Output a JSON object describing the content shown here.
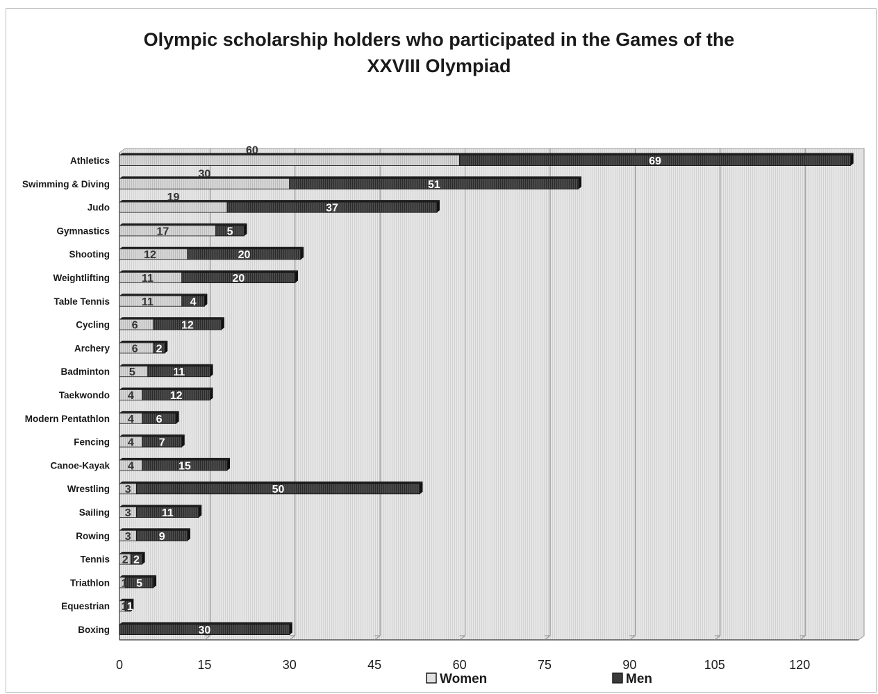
{
  "chart_data": {
    "type": "bar",
    "orientation": "horizontal",
    "stacked": true,
    "title": "Olympic scholarship holders who participated in the Games of the XXVIII Olympiad",
    "title_lines": [
      "Olympic scholarship holders who participated in the Games of the",
      "XXVIII Olympiad"
    ],
    "categories": [
      "Athletics",
      "Swimming & Diving",
      "Judo",
      "Gymnastics",
      "Shooting",
      "Weightlifting",
      "Table Tennis",
      "Cycling",
      "Archery",
      "Badminton",
      "Taekwondo",
      "Modern Pentathlon",
      "Fencing",
      "Canoe-Kayak",
      "Wrestling",
      "Sailing",
      "Rowing",
      "Tennis",
      "Triathlon",
      "Equestrian",
      "Boxing"
    ],
    "series": [
      {
        "name": "Women",
        "values": [
          60,
          30,
          19,
          17,
          12,
          11,
          11,
          6,
          6,
          5,
          4,
          4,
          4,
          4,
          3,
          3,
          3,
          2,
          1,
          1,
          0
        ],
        "color": "#d4d4d4"
      },
      {
        "name": "Men",
        "values": [
          69,
          51,
          37,
          5,
          20,
          20,
          4,
          12,
          2,
          11,
          12,
          6,
          7,
          15,
          50,
          11,
          9,
          2,
          5,
          1,
          30
        ],
        "color": "#3a3a3a"
      }
    ],
    "xticks": [
      0,
      15,
      30,
      45,
      60,
      75,
      90,
      105,
      120
    ],
    "xlim": [
      0,
      130
    ],
    "grid": true,
    "legend_placement": "bottom"
  }
}
